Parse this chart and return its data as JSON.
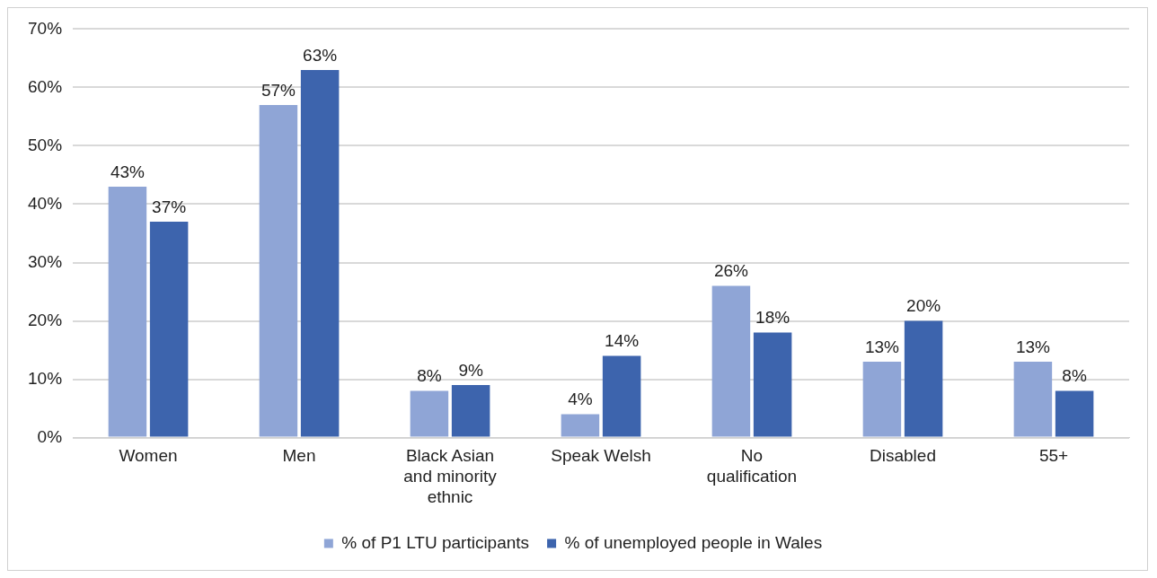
{
  "chart_data": {
    "type": "bar",
    "categories": [
      "Women",
      "Men",
      "Black Asian and minority ethnic",
      "Speak Welsh",
      "No qualification",
      "Disabled",
      "55+"
    ],
    "series": [
      {
        "name": "% of P1 LTU participants",
        "color": "#8fa5d6",
        "values": [
          43,
          57,
          8,
          4,
          26,
          13,
          13
        ],
        "value_labels": [
          "43%",
          "57%",
          "8%",
          "4%",
          "26%",
          "13%",
          "13%"
        ]
      },
      {
        "name": "% of unemployed people in Wales",
        "color": "#3d64ad",
        "values": [
          37,
          63,
          9,
          14,
          18,
          20,
          8
        ],
        "value_labels": [
          "37%",
          "63%",
          "9%",
          "14%",
          "18%",
          "20%",
          "8%"
        ]
      }
    ],
    "ylim": [
      0,
      70
    ],
    "yticks": [
      {
        "value": 0,
        "label": "0%"
      },
      {
        "value": 10,
        "label": "10%"
      },
      {
        "value": 20,
        "label": "20%"
      },
      {
        "value": 30,
        "label": "30%"
      },
      {
        "value": 40,
        "label": "40%"
      },
      {
        "value": 50,
        "label": "50%"
      },
      {
        "value": 60,
        "label": "60%"
      },
      {
        "value": 70,
        "label": "70%"
      }
    ],
    "grid": "y",
    "legend": "bottom"
  }
}
